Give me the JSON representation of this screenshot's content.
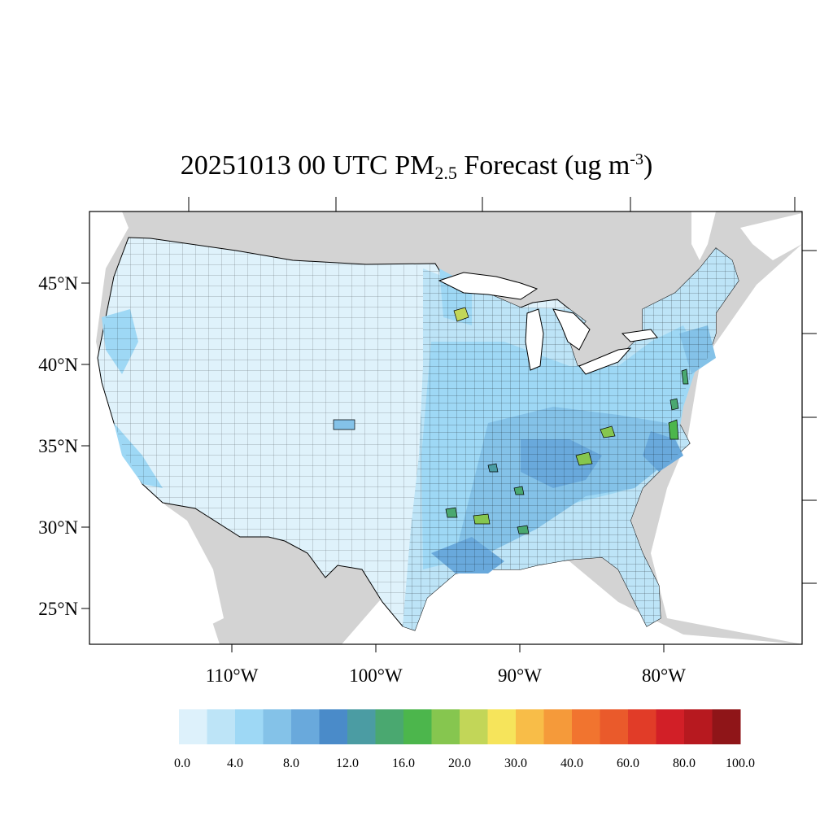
{
  "title": {
    "main": "20251013 00 UTC PM",
    "subscript": "2.5",
    "rest": " Forecast (ug m",
    "superscript": "-3",
    "close": ")"
  },
  "map": {
    "lat_labels": [
      "45°N",
      "40°N",
      "35°N",
      "30°N",
      "25°N"
    ],
    "lat_values": [
      45,
      40,
      35,
      30,
      25
    ],
    "lon_labels": [
      "110°W",
      "100°W",
      "90°W",
      "80°W"
    ],
    "lon_values": [
      -110,
      -100,
      -90,
      -80
    ],
    "background_land_color": "#d3d3d3",
    "water_color": "#ffffff",
    "county_line_color": "#000000"
  },
  "colorbar": {
    "colors": [
      "#ddf1fb",
      "#bde4f7",
      "#9ed8f5",
      "#84c2e8",
      "#69a9dc",
      "#4a8bc9",
      "#4b9ca3",
      "#4aa870",
      "#4cb64c",
      "#86c64f",
      "#c2d658",
      "#f6e45b",
      "#f8bd48",
      "#f59a3a",
      "#f1742f",
      "#ea5a2b",
      "#e13c28",
      "#d21f27",
      "#b7191f",
      "#8f1518"
    ],
    "labels": [
      "0.0",
      "4.0",
      "8.0",
      "12.0",
      "16.0",
      "20.0",
      "30.0",
      "40.0",
      "60.0",
      "80.0",
      "100.0"
    ]
  }
}
